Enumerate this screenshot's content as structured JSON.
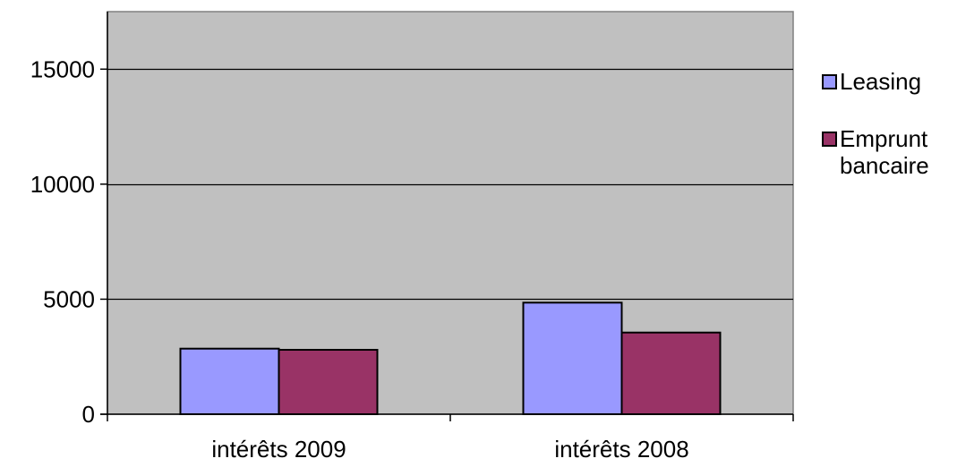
{
  "chart_data": {
    "type": "bar",
    "title": "",
    "xlabel": "",
    "ylabel": "",
    "categories": [
      "intérêts 2009",
      "intérêts 2008"
    ],
    "series": [
      {
        "name": "Leasing",
        "values": [
          2850,
          4850
        ],
        "color": "#9999FF"
      },
      {
        "name": "Emprunt bancaire",
        "values": [
          2800,
          3550
        ],
        "color": "#993366"
      }
    ],
    "ylim": [
      0,
      17500
    ],
    "yticks": [
      0,
      5000,
      10000,
      15000
    ],
    "ytick_labels": [
      "0",
      "5000",
      "10000",
      "15000"
    ],
    "grid": true,
    "plot_background": "#C0C0C0",
    "legend_position": "right"
  }
}
